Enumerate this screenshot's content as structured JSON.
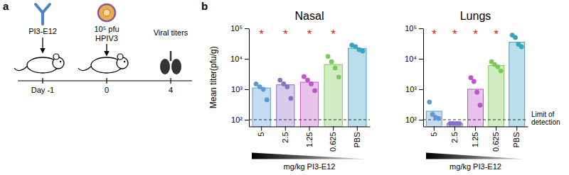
{
  "diagram": {
    "panel_label": "a",
    "treatment": "PI3-E12",
    "challenge_dose": "10⁵ pfu",
    "challenge_virus": "HPIV3",
    "readout": "Viral titers",
    "timeline": [
      "Day -1",
      "0",
      "4"
    ]
  },
  "chart_panel_label": "b",
  "chart_data": [
    {
      "type": "bar",
      "title": "Nasal",
      "ylabel": "Mean titer(pfu/g)",
      "xlabel": "mg/kg PI3-E12",
      "categories": [
        "5",
        "2.5",
        "1.25",
        "0.625",
        "PBS"
      ],
      "values": [
        1100,
        1400,
        1700,
        6500,
        22000
      ],
      "points": [
        [
          1500,
          1200,
          1000,
          450
        ],
        [
          2000,
          1500,
          1200,
          500
        ],
        [
          2600,
          2000,
          1500,
          900
        ],
        [
          12000,
          8000,
          5000,
          2500
        ],
        [
          28000,
          25000,
          20000,
          18000
        ]
      ],
      "colors": [
        "#5b9bd5",
        "#8a6fc9",
        "#c252c9",
        "#7bc95a",
        "#3aa2c4"
      ],
      "significance": [
        "*",
        "*",
        "*",
        "*",
        null
      ],
      "reference_line": {
        "value": 100
      },
      "log": "y",
      "ylim": [
        60,
        100000
      ],
      "yticks": [
        {
          "value": 100,
          "label": "10²"
        },
        {
          "value": 1000,
          "label": "10³"
        },
        {
          "value": 10000,
          "label": "10⁴"
        },
        {
          "value": 100000,
          "label": "10⁵"
        }
      ]
    },
    {
      "type": "bar",
      "title": "Lungs",
      "xlabel": "mg/kg PI3-E12",
      "categories": [
        "5",
        "2.5",
        "1.25",
        "0.625",
        "PBS"
      ],
      "values": [
        190,
        75,
        1000,
        6000,
        35000
      ],
      "points": [
        [
          380,
          150,
          120,
          110
        ],
        [
          75,
          75,
          75,
          75
        ],
        [
          2400,
          1800,
          800,
          300
        ],
        [
          8000,
          6500,
          5500,
          4000
        ],
        [
          60000,
          50000,
          30000,
          25000
        ]
      ],
      "colors": [
        "#5b9bd5",
        "#8a6fc9",
        "#c252c9",
        "#7bc95a",
        "#3aa2c4"
      ],
      "significance": [
        "*",
        "*",
        "*",
        "*",
        null
      ],
      "reference_line": {
        "value": 100,
        "label": "Limit of detection"
      },
      "log": "y",
      "ylim": [
        60,
        100000
      ],
      "yticks": [
        {
          "value": 100,
          "label": "10²"
        },
        {
          "value": 1000,
          "label": "10³"
        },
        {
          "value": 10000,
          "label": "10⁴"
        },
        {
          "value": 100000,
          "label": "10⁵"
        }
      ]
    }
  ]
}
